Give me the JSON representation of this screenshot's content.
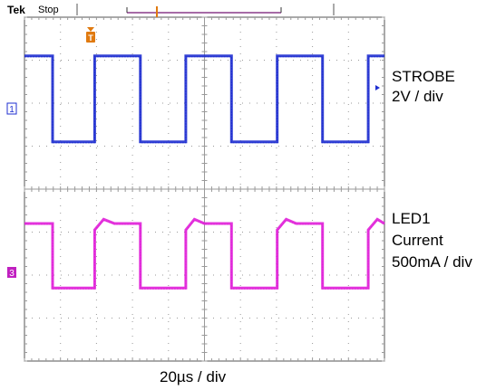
{
  "header": {
    "brand": "Tek",
    "acquisition_state": "Stop"
  },
  "markers": {
    "trigger_position": "T",
    "ch1": "1",
    "ch3": "3"
  },
  "labels": {
    "strobe_name": "STROBE",
    "strobe_scale": "2V / div",
    "led_name": "LED1",
    "led_sub": "Current",
    "led_scale": "500mA / div",
    "timebase": "20µs / div"
  },
  "colors": {
    "ch1": "#1f2fd0",
    "ch3": "#e020d8",
    "grid": "#9a9a9a",
    "frame": "#555555",
    "trigger": "#e07a10"
  },
  "chart_data": {
    "type": "line",
    "x_divisions": 10,
    "y_divisions": 8,
    "x_unit_per_div": "20µs",
    "xlim": [
      0,
      10
    ],
    "ylim": [
      -4,
      4
    ],
    "grid": true,
    "series": [
      {
        "name": "STROBE",
        "channel": 1,
        "color": "#1f2fd0",
        "scale": "2V / div",
        "x": [
          0,
          0.78,
          0.78,
          1.95,
          1.95,
          3.22,
          3.22,
          4.48,
          4.48,
          5.75,
          5.75,
          7.02,
          7.02,
          8.28,
          8.28,
          9.55,
          9.55,
          10.0
        ],
        "y": [
          3.1,
          3.1,
          1.1,
          1.1,
          3.1,
          3.1,
          1.1,
          1.1,
          3.1,
          3.1,
          1.1,
          1.1,
          3.1,
          3.1,
          1.1,
          1.1,
          3.1,
          3.1
        ]
      },
      {
        "name": "LED1 Current",
        "channel": 3,
        "color": "#e020d8",
        "scale": "500mA / div",
        "x": [
          0,
          0.78,
          0.78,
          1.95,
          1.95,
          2.2,
          2.5,
          3.22,
          3.22,
          4.48,
          4.48,
          4.72,
          5.0,
          5.75,
          5.75,
          7.02,
          7.02,
          7.27,
          7.55,
          8.28,
          8.28,
          9.55,
          9.55,
          9.8,
          10.0
        ],
        "y": [
          -0.8,
          -0.8,
          -2.3,
          -2.3,
          -0.95,
          -0.7,
          -0.8,
          -0.8,
          -2.3,
          -2.3,
          -0.95,
          -0.7,
          -0.8,
          -0.8,
          -2.3,
          -2.3,
          -0.95,
          -0.7,
          -0.8,
          -0.8,
          -2.3,
          -2.3,
          -0.95,
          -0.7,
          -0.8
        ]
      }
    ]
  }
}
